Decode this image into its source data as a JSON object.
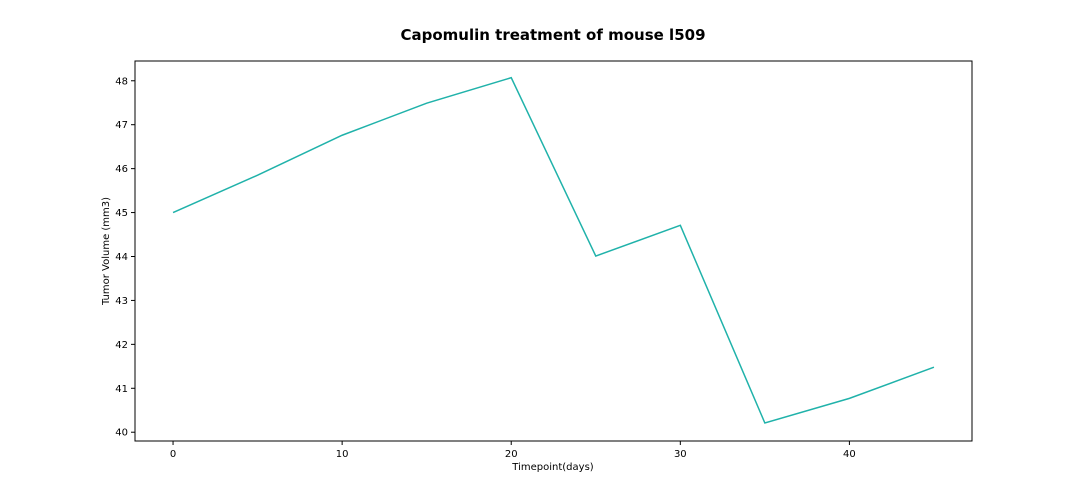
{
  "chart_data": {
    "type": "line",
    "title": "Capomulin treatment of mouse l509",
    "xlabel": "Timepoint(days)",
    "ylabel": "Tumor Volume (mm3)",
    "xlim": [
      -2.25,
      47.25
    ],
    "ylim": [
      39.8,
      48.45
    ],
    "xticks": [
      0,
      10,
      20,
      30,
      40
    ],
    "yticks": [
      40,
      41,
      42,
      43,
      44,
      45,
      46,
      47,
      48
    ],
    "grid": false,
    "series": [
      {
        "color": "#20b2aa",
        "x": [
          0,
          5,
          10,
          15,
          20,
          25,
          30,
          35,
          40,
          45
        ],
        "y": [
          45.0,
          45.85,
          46.76,
          47.49,
          48.07,
          44.01,
          44.71,
          40.21,
          40.77,
          41.48
        ]
      }
    ]
  }
}
